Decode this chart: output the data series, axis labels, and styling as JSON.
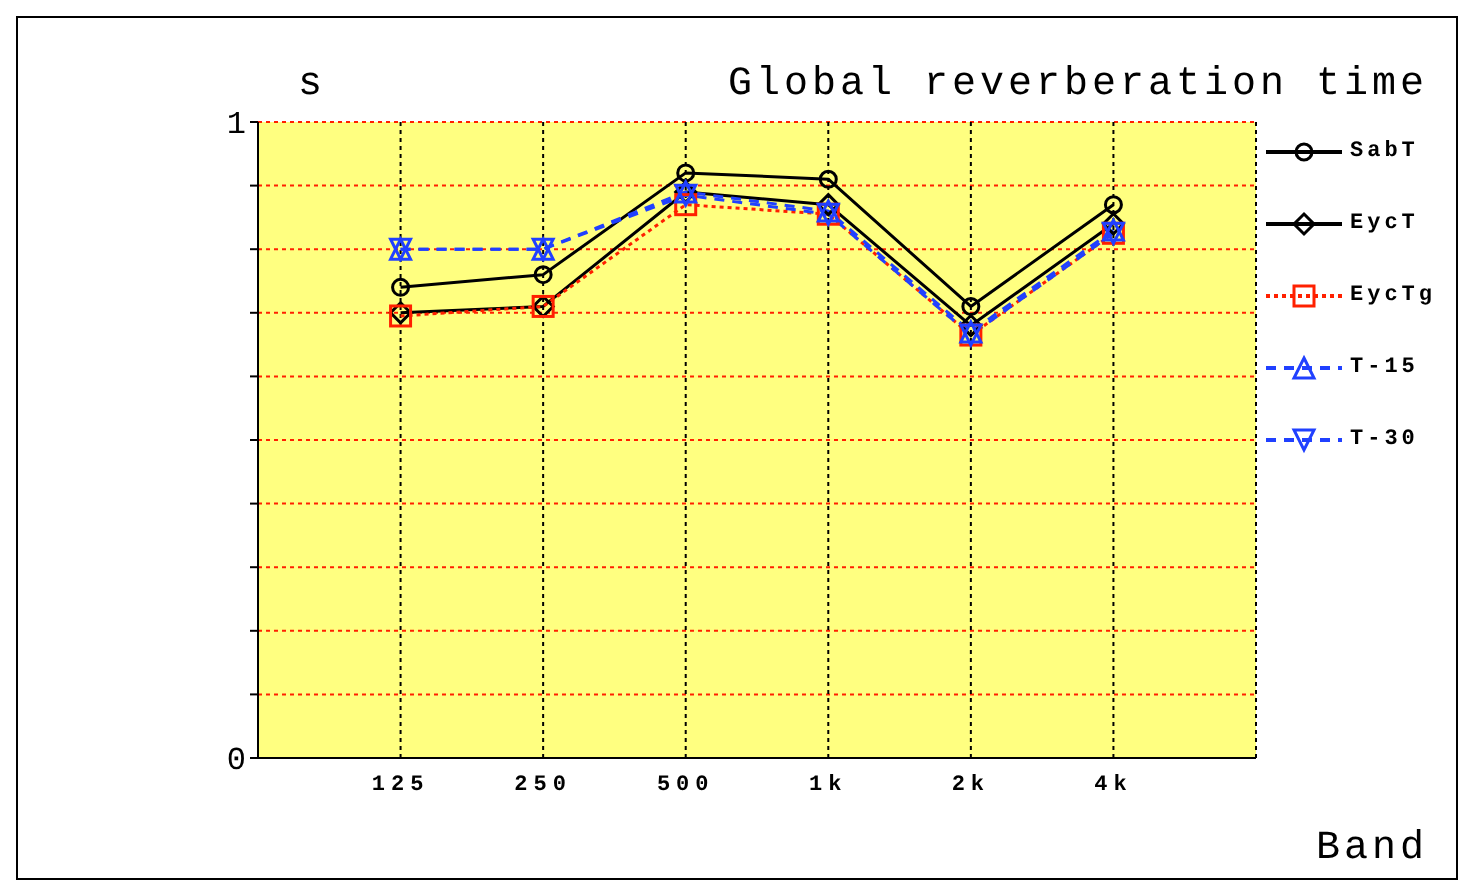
{
  "chart_data": {
    "type": "line",
    "title": "Global reverberation time",
    "xlabel": "Band",
    "ylabel": "s",
    "categories": [
      "125",
      "250",
      "500",
      "1k",
      "2k",
      "4k"
    ],
    "ylim": [
      0,
      1
    ],
    "yticks": [
      0,
      {
        "value": 0.1,
        "label": null
      },
      {
        "value": 0.2,
        "label": null
      },
      {
        "value": 0.3,
        "label": null
      },
      {
        "value": 0.4,
        "label": null
      },
      {
        "value": 0.5,
        "label": null
      },
      {
        "value": 0.6,
        "label": null
      },
      {
        "value": 0.7,
        "label": null
      },
      {
        "value": 0.8,
        "label": null
      },
      {
        "value": 0.9,
        "label": null
      },
      1
    ],
    "grid": true,
    "legend": "right",
    "series": [
      {
        "name": "SabT",
        "color": "#000000",
        "marker": "circle",
        "line_style": "solid",
        "values": [
          0.74,
          0.76,
          0.92,
          0.91,
          0.71,
          0.87
        ]
      },
      {
        "name": "EycT",
        "color": "#000000",
        "marker": "diamond",
        "line_style": "solid",
        "values": [
          0.7,
          0.71,
          0.89,
          0.87,
          0.68,
          0.84
        ]
      },
      {
        "name": "EycTg",
        "color": "#ff2000",
        "marker": "square",
        "line_style": "dotted",
        "values": [
          0.695,
          0.71,
          0.87,
          0.855,
          0.665,
          0.825
        ]
      },
      {
        "name": "T-15",
        "color": "#2040ff",
        "marker": "triangle",
        "line_style": "dashed",
        "values": [
          0.8,
          0.8,
          0.89,
          0.86,
          0.67,
          0.83
        ]
      },
      {
        "name": "T-30",
        "color": "#2040ff",
        "marker": "triangle-down",
        "line_style": "dashed",
        "values": [
          0.8,
          0.8,
          0.885,
          0.855,
          0.665,
          0.825
        ]
      }
    ]
  }
}
